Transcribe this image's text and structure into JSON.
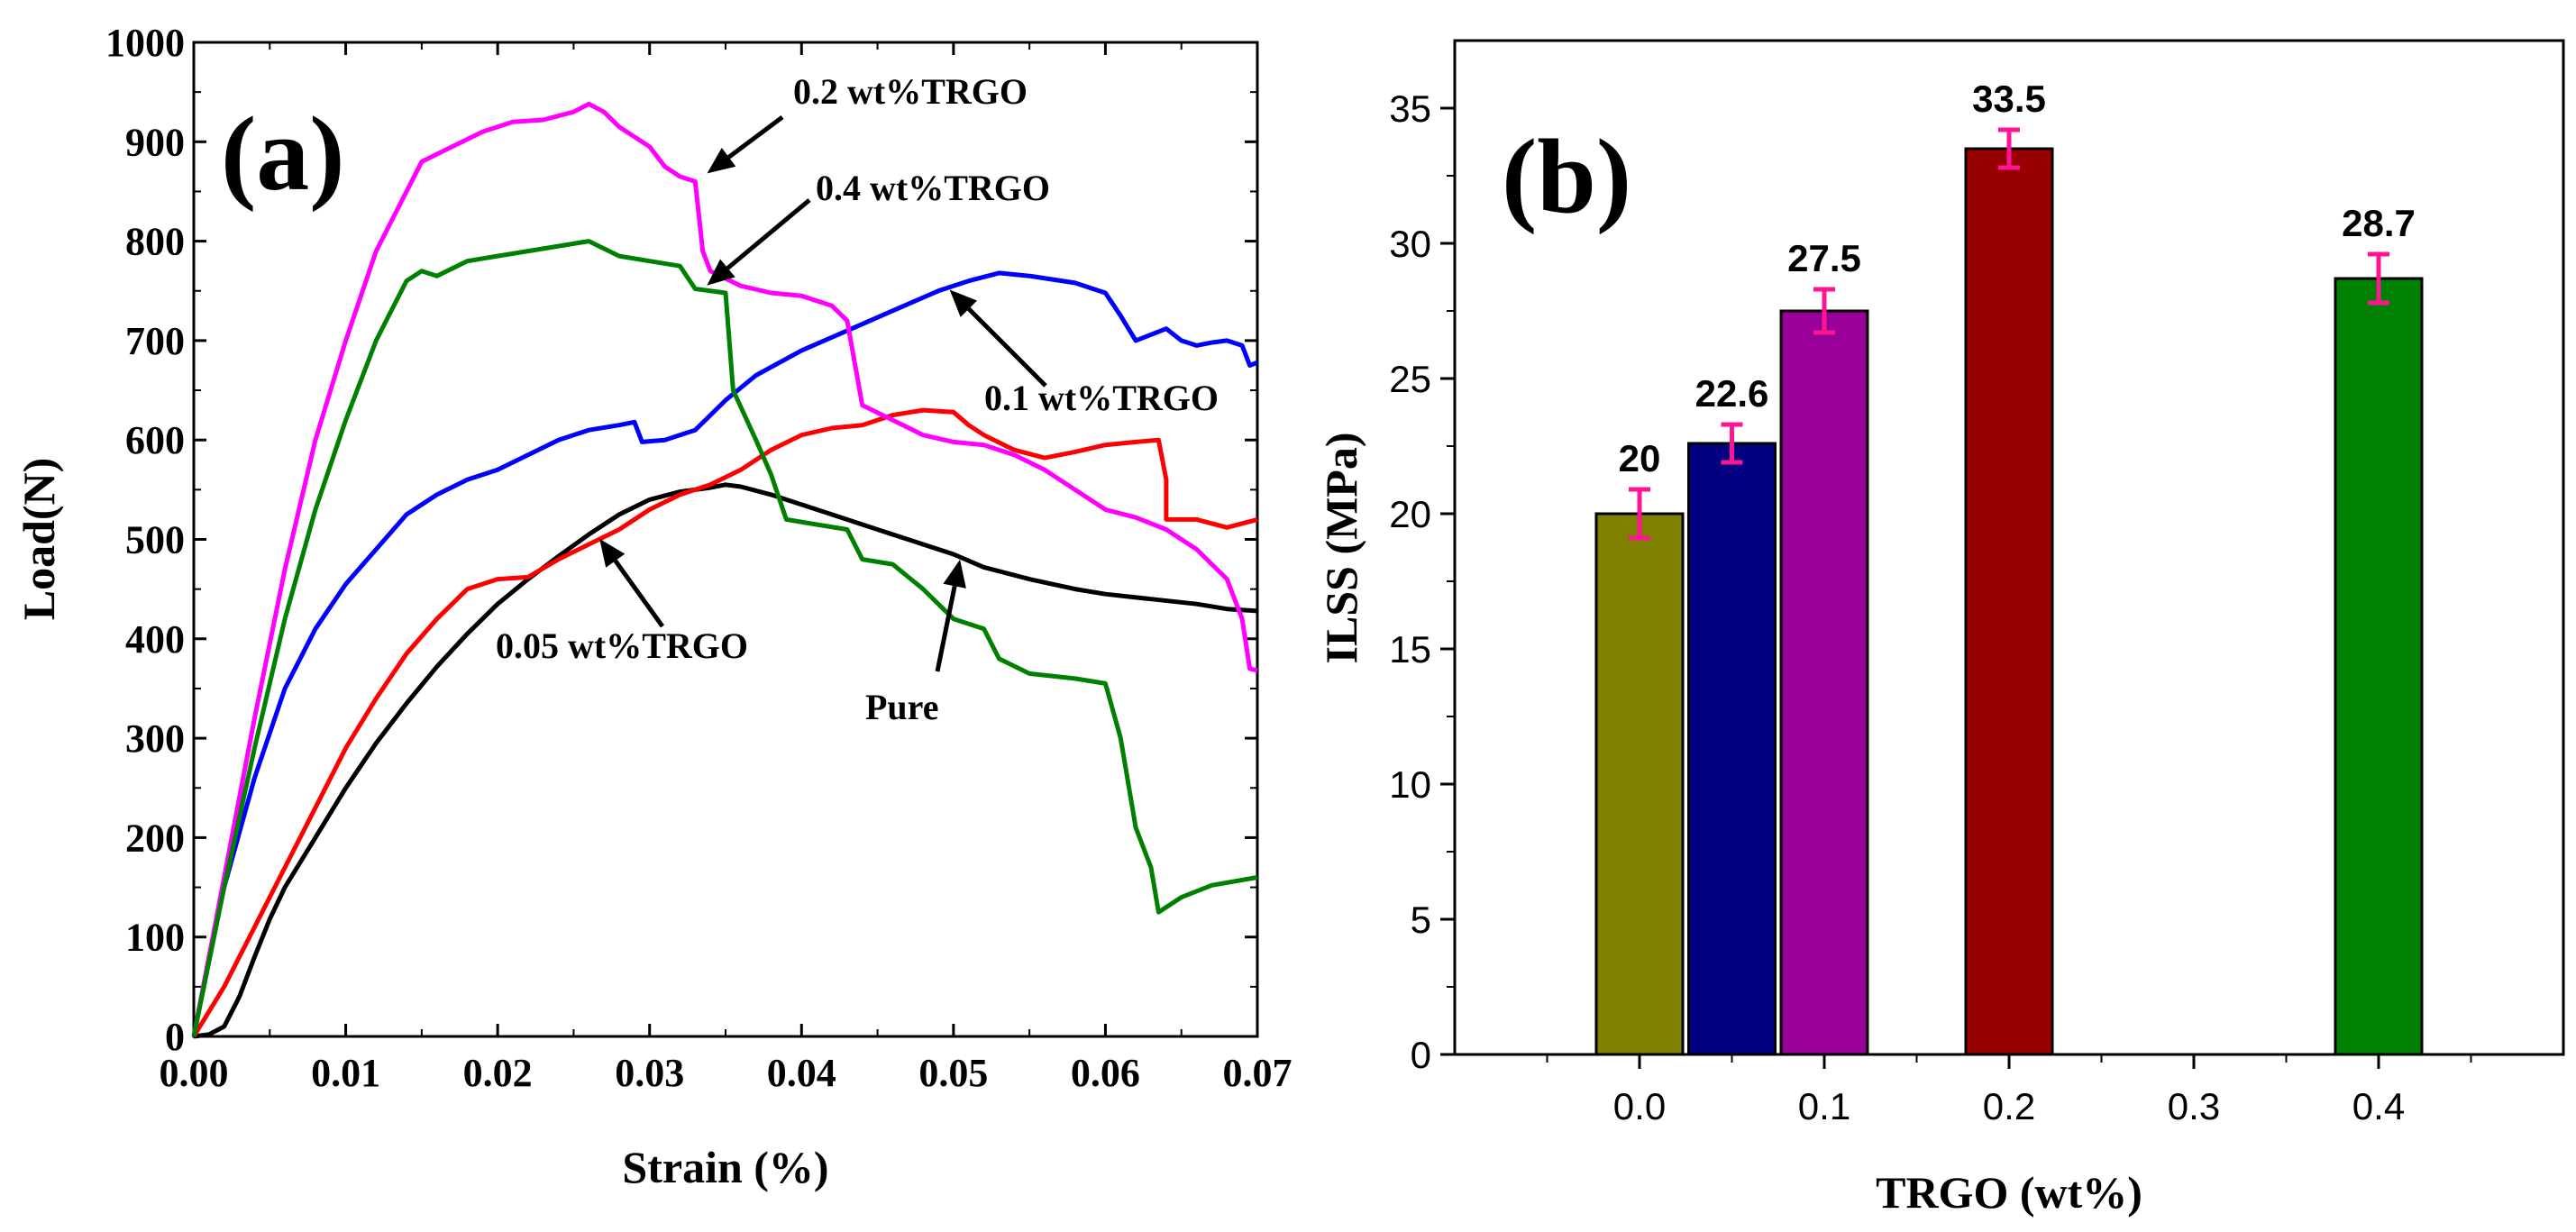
{
  "chart_data": [
    {
      "type": "line",
      "panel_label": "(a)",
      "xlabel": "Strain (%)",
      "ylabel": "Load(N)",
      "xlim": [
        0,
        0.07
      ],
      "ylim": [
        0,
        1000
      ],
      "x_ticks": [
        "0.00",
        "0.01",
        "0.02",
        "0.03",
        "0.04",
        "0.05",
        "0.06",
        "0.07"
      ],
      "y_ticks": [
        "0",
        "100",
        "200",
        "300",
        "400",
        "500",
        "600",
        "700",
        "800",
        "900",
        "1000"
      ],
      "series": [
        {
          "name": "Pure",
          "color": "#000000",
          "points": [
            [
              0,
              0
            ],
            [
              0.001,
              2
            ],
            [
              0.002,
              10
            ],
            [
              0.003,
              40
            ],
            [
              0.004,
              80
            ],
            [
              0.005,
              118
            ],
            [
              0.006,
              150
            ],
            [
              0.008,
              200
            ],
            [
              0.01,
              250
            ],
            [
              0.012,
              295
            ],
            [
              0.014,
              335
            ],
            [
              0.016,
              372
            ],
            [
              0.018,
              405
            ],
            [
              0.02,
              435
            ],
            [
              0.022,
              460
            ],
            [
              0.024,
              483
            ],
            [
              0.026,
              505
            ],
            [
              0.028,
              525
            ],
            [
              0.03,
              540
            ],
            [
              0.032,
              548
            ],
            [
              0.034,
              552
            ],
            [
              0.035,
              555
            ],
            [
              0.036,
              553
            ],
            [
              0.038,
              545
            ],
            [
              0.04,
              535
            ],
            [
              0.042,
              525
            ],
            [
              0.044,
              515
            ],
            [
              0.046,
              505
            ],
            [
              0.048,
              495
            ],
            [
              0.05,
              485
            ],
            [
              0.052,
              472
            ],
            [
              0.055,
              460
            ],
            [
              0.058,
              450
            ],
            [
              0.06,
              445
            ],
            [
              0.063,
              440
            ],
            [
              0.066,
              435
            ],
            [
              0.068,
              430
            ],
            [
              0.07,
              428
            ]
          ]
        },
        {
          "name": "0.05 wt%TRGO",
          "color": "#ff0000",
          "points": [
            [
              0,
              0
            ],
            [
              0.002,
              50
            ],
            [
              0.004,
              110
            ],
            [
              0.006,
              170
            ],
            [
              0.008,
              230
            ],
            [
              0.01,
              290
            ],
            [
              0.012,
              340
            ],
            [
              0.014,
              385
            ],
            [
              0.016,
              420
            ],
            [
              0.018,
              450
            ],
            [
              0.02,
              460
            ],
            [
              0.022,
              462
            ],
            [
              0.024,
              480
            ],
            [
              0.026,
              495
            ],
            [
              0.028,
              510
            ],
            [
              0.03,
              530
            ],
            [
              0.032,
              545
            ],
            [
              0.034,
              555
            ],
            [
              0.036,
              570
            ],
            [
              0.038,
              590
            ],
            [
              0.04,
              605
            ],
            [
              0.042,
              612
            ],
            [
              0.044,
              615
            ],
            [
              0.046,
              625
            ],
            [
              0.048,
              630
            ],
            [
              0.05,
              628
            ],
            [
              0.051,
              615
            ],
            [
              0.052,
              605
            ],
            [
              0.054,
              590
            ],
            [
              0.056,
              582
            ],
            [
              0.058,
              588
            ],
            [
              0.06,
              595
            ],
            [
              0.062,
              598
            ],
            [
              0.0635,
              600
            ],
            [
              0.064,
              560
            ],
            [
              0.064,
              520
            ],
            [
              0.066,
              520
            ],
            [
              0.068,
              512
            ],
            [
              0.07,
              520
            ]
          ]
        },
        {
          "name": "0.1 wt%TRGO",
          "color": "#0000ff",
          "points": [
            [
              0,
              0
            ],
            [
              0.001,
              80
            ],
            [
              0.002,
              150
            ],
            [
              0.004,
              260
            ],
            [
              0.006,
              350
            ],
            [
              0.008,
              410
            ],
            [
              0.01,
              455
            ],
            [
              0.012,
              490
            ],
            [
              0.014,
              525
            ],
            [
              0.016,
              545
            ],
            [
              0.018,
              560
            ],
            [
              0.02,
              570
            ],
            [
              0.022,
              585
            ],
            [
              0.024,
              600
            ],
            [
              0.026,
              610
            ],
            [
              0.028,
              615
            ],
            [
              0.029,
              618
            ],
            [
              0.0295,
              598
            ],
            [
              0.031,
              600
            ],
            [
              0.033,
              610
            ],
            [
              0.035,
              640
            ],
            [
              0.037,
              665
            ],
            [
              0.04,
              690
            ],
            [
              0.043,
              710
            ],
            [
              0.046,
              730
            ],
            [
              0.049,
              750
            ],
            [
              0.051,
              760
            ],
            [
              0.053,
              768
            ],
            [
              0.055,
              765
            ],
            [
              0.058,
              758
            ],
            [
              0.06,
              748
            ],
            [
              0.061,
              725
            ],
            [
              0.062,
              700
            ],
            [
              0.064,
              712
            ],
            [
              0.065,
              700
            ],
            [
              0.066,
              695
            ],
            [
              0.067,
              698
            ],
            [
              0.068,
              700
            ],
            [
              0.069,
              695
            ],
            [
              0.0695,
              675
            ],
            [
              0.07,
              678
            ]
          ]
        },
        {
          "name": "0.2 wt%TRGO",
          "color": "#ff00ff",
          "points": [
            [
              0,
              0
            ],
            [
              0.002,
              160
            ],
            [
              0.004,
              320
            ],
            [
              0.006,
              470
            ],
            [
              0.008,
              600
            ],
            [
              0.01,
              700
            ],
            [
              0.012,
              790
            ],
            [
              0.014,
              850
            ],
            [
              0.015,
              880
            ],
            [
              0.017,
              895
            ],
            [
              0.019,
              910
            ],
            [
              0.021,
              920
            ],
            [
              0.023,
              922
            ],
            [
              0.025,
              930
            ],
            [
              0.026,
              938
            ],
            [
              0.027,
              930
            ],
            [
              0.028,
              915
            ],
            [
              0.029,
              905
            ],
            [
              0.03,
              895
            ],
            [
              0.031,
              875
            ],
            [
              0.032,
              865
            ],
            [
              0.033,
              860
            ],
            [
              0.0335,
              790
            ],
            [
              0.034,
              770
            ],
            [
              0.036,
              755
            ],
            [
              0.038,
              748
            ],
            [
              0.04,
              745
            ],
            [
              0.042,
              735
            ],
            [
              0.043,
              720
            ],
            [
              0.044,
              635
            ],
            [
              0.046,
              620
            ],
            [
              0.048,
              605
            ],
            [
              0.05,
              598
            ],
            [
              0.052,
              595
            ],
            [
              0.054,
              585
            ],
            [
              0.056,
              570
            ],
            [
              0.058,
              550
            ],
            [
              0.06,
              530
            ],
            [
              0.062,
              522
            ],
            [
              0.064,
              510
            ],
            [
              0.066,
              490
            ],
            [
              0.068,
              460
            ],
            [
              0.069,
              420
            ],
            [
              0.0695,
              370
            ],
            [
              0.07,
              368
            ]
          ]
        },
        {
          "name": "0.4 wt%TRGO",
          "color": "#008000",
          "points": [
            [
              0,
              0
            ],
            [
              0.002,
              150
            ],
            [
              0.004,
              290
            ],
            [
              0.006,
              420
            ],
            [
              0.008,
              530
            ],
            [
              0.01,
              620
            ],
            [
              0.012,
              700
            ],
            [
              0.013,
              730
            ],
            [
              0.014,
              760
            ],
            [
              0.015,
              770
            ],
            [
              0.016,
              765
            ],
            [
              0.018,
              780
            ],
            [
              0.02,
              785
            ],
            [
              0.022,
              790
            ],
            [
              0.024,
              795
            ],
            [
              0.026,
              800
            ],
            [
              0.028,
              785
            ],
            [
              0.03,
              780
            ],
            [
              0.032,
              775
            ],
            [
              0.033,
              752
            ],
            [
              0.035,
              748
            ],
            [
              0.0355,
              650
            ],
            [
              0.037,
              600
            ],
            [
              0.038,
              565
            ],
            [
              0.039,
              520
            ],
            [
              0.041,
              515
            ],
            [
              0.043,
              510
            ],
            [
              0.044,
              480
            ],
            [
              0.046,
              475
            ],
            [
              0.048,
              450
            ],
            [
              0.05,
              420
            ],
            [
              0.052,
              410
            ],
            [
              0.053,
              380
            ],
            [
              0.055,
              365
            ],
            [
              0.058,
              360
            ],
            [
              0.06,
              355
            ],
            [
              0.061,
              300
            ],
            [
              0.062,
              210
            ],
            [
              0.063,
              170
            ],
            [
              0.0635,
              125
            ],
            [
              0.065,
              140
            ],
            [
              0.067,
              152
            ],
            [
              0.07,
              160
            ]
          ]
        }
      ],
      "annotations": [
        {
          "text": "0.2 wt%TRGO",
          "x": 0.0335,
          "y": 865,
          "series": "0.2 wt%TRGO"
        },
        {
          "text": "0.4 wt%TRGO",
          "x": 0.0335,
          "y": 752,
          "series": "0.4 wt%TRGO"
        },
        {
          "text": "0.1 wt%TRGO",
          "x": 0.0495,
          "y": 755,
          "series": "0.1 wt%TRGO"
        },
        {
          "text": "0.05 wt%TRGO",
          "x": 0.0265,
          "y": 505,
          "series": "0.05 wt%TRGO"
        },
        {
          "text": "Pure",
          "x": 0.0505,
          "y": 485,
          "series": "Pure"
        }
      ]
    },
    {
      "type": "bar",
      "panel_label": "(b)",
      "xlabel": "TRGO (wt%)",
      "ylabel": "ILSS (MPa)",
      "xlim": [
        -0.1,
        0.5
      ],
      "ylim": [
        0,
        37.5
      ],
      "x_ticks": [
        "0.0",
        "0.1",
        "0.2",
        "0.3",
        "0.4"
      ],
      "y_ticks": [
        "0",
        "5",
        "10",
        "15",
        "20",
        "25",
        "30",
        "35"
      ],
      "categories": [
        0,
        0.05,
        0.1,
        0.2,
        0.4
      ],
      "values": [
        20,
        22.6,
        27.5,
        33.5,
        28.7
      ],
      "value_labels": [
        "20",
        "22.6",
        "27.5",
        "33.5",
        "28.7"
      ],
      "errors": [
        0.9,
        0.7,
        0.8,
        0.7,
        0.9
      ],
      "bar_colors": [
        "#808000",
        "#000080",
        "#990099",
        "#990000",
        "#008000"
      ],
      "error_color": "#ff1493"
    }
  ]
}
